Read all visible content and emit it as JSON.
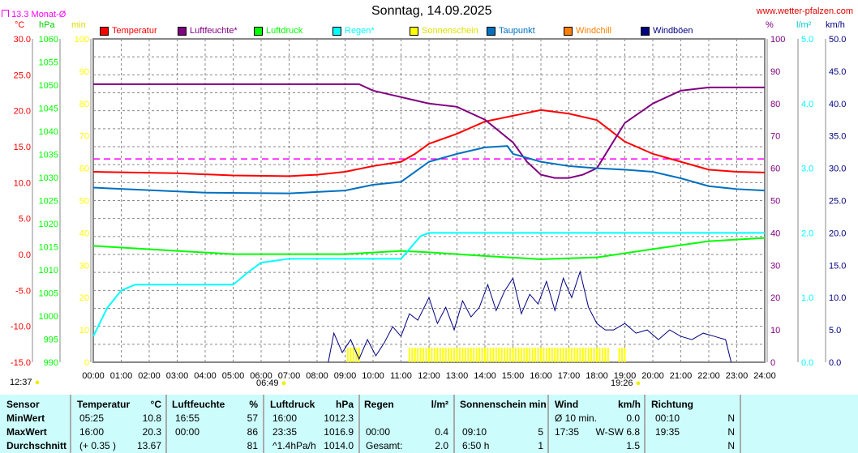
{
  "header": {
    "title": "Sonntag, 14.09.2025",
    "site": "www.wetter-pfalzen.com",
    "month_avg": "13.3 Monat-Ø"
  },
  "units": {
    "temp": "°C",
    "press": "hPa",
    "sun": "min",
    "hum": "%",
    "rain": "l/m²",
    "wind": "km/h"
  },
  "legend": [
    {
      "label": "Temperatur",
      "color": "#ff0000"
    },
    {
      "label": "Luftfeuchte*",
      "color": "#800080"
    },
    {
      "label": "Luftdruck",
      "color": "#00ff00"
    },
    {
      "label": "Regen*",
      "color": "#00ffff"
    },
    {
      "label": "Sonnenschein",
      "color": "#ffff00"
    },
    {
      "label": "Taupunkt",
      "color": "#0070c0"
    },
    {
      "label": "Windchill",
      "color": "#ff8000"
    },
    {
      "label": "Windböen",
      "color": "#000080"
    }
  ],
  "sun": {
    "sunrise": "06:49",
    "sunset": "19:26",
    "noon": "12:37"
  },
  "chart_data": {
    "type": "line",
    "title": "Sonntag, 14.09.2025",
    "xlim": [
      0,
      24
    ],
    "x_ticks": [
      "00:00",
      "01:00",
      "02:00",
      "03:00",
      "04:00",
      "05:00",
      "06:00",
      "07:00",
      "08:00",
      "09:00",
      "10:00",
      "11:00",
      "12:00",
      "13:00",
      "14:00",
      "15:00",
      "16:00",
      "17:00",
      "18:00",
      "19:00",
      "20:00",
      "21:00",
      "22:00",
      "23:00",
      "24:00"
    ],
    "axes": {
      "temp": {
        "range": [
          -15,
          30
        ],
        "ticks": [
          "30.0",
          "25.0",
          "20.0",
          "15.0",
          "10.0",
          "5.0",
          "0.0",
          "-5.0",
          "-10.0",
          "-15.0"
        ]
      },
      "press": {
        "range": [
          990,
          1060
        ],
        "ticks": [
          "1060",
          "1055",
          "1050",
          "1045",
          "1040",
          "1035",
          "1030",
          "1025",
          "1020",
          "1015",
          "1010",
          "1005",
          "1000",
          "995",
          "990"
        ]
      },
      "sun": {
        "range": [
          0,
          100
        ],
        "ticks": [
          "100",
          "90",
          "80",
          "70",
          "60",
          "50",
          "40",
          "30",
          "20",
          "10",
          "0"
        ]
      },
      "hum": {
        "range": [
          0,
          100
        ],
        "ticks": [
          "100",
          "90",
          "80",
          "70",
          "60",
          "50",
          "40",
          "30",
          "20",
          "10",
          "0"
        ]
      },
      "rain": {
        "range": [
          0,
          5
        ],
        "ticks": [
          "5.0",
          "4.0",
          "3.0",
          "2.0",
          "1.0",
          "0.0"
        ]
      },
      "wind": {
        "range": [
          0,
          50
        ],
        "ticks": [
          "50.0",
          "45.0",
          "40.0",
          "35.0",
          "30.0",
          "25.0",
          "20.0",
          "15.0",
          "10.0",
          "5.0",
          "0.0"
        ]
      }
    },
    "month_avg_temp": 13.3,
    "series": [
      {
        "name": "Temperatur",
        "axis": "temp",
        "color": "#ff0000",
        "x": [
          0,
          3,
          5,
          7,
          8,
          9,
          10,
          11,
          11.5,
          12,
          13,
          14,
          15,
          16,
          17,
          18,
          19,
          20,
          21,
          22,
          23,
          24
        ],
        "y": [
          11.5,
          11.3,
          11.0,
          10.9,
          11.1,
          11.5,
          12.3,
          12.9,
          14.0,
          15.4,
          16.8,
          18.5,
          19.3,
          20.1,
          19.6,
          18.7,
          15.7,
          14.0,
          12.9,
          11.8,
          11.5,
          11.4
        ]
      },
      {
        "name": "Luftfeuchte",
        "axis": "hum",
        "color": "#800080",
        "x": [
          0,
          9.5,
          10,
          11,
          12,
          13,
          14,
          15,
          15.5,
          16,
          16.5,
          17,
          17.5,
          18,
          18.5,
          19,
          20,
          21,
          22,
          24
        ],
        "y": [
          86,
          86,
          84,
          82,
          80,
          79,
          75,
          68,
          62,
          58,
          57,
          57,
          58,
          60,
          67,
          74,
          80,
          84,
          85,
          85
        ]
      },
      {
        "name": "Luftdruck",
        "axis": "press",
        "color": "#00ff00",
        "x": [
          0,
          3,
          5,
          9,
          11,
          12,
          14,
          16,
          18,
          20,
          22,
          24
        ],
        "y": [
          1015.2,
          1014.1,
          1013.4,
          1013.4,
          1014.1,
          1013.8,
          1013.0,
          1012.3,
          1012.7,
          1014.5,
          1016.2,
          1016.9
        ]
      },
      {
        "name": "Regen",
        "axis": "rain",
        "color": "#00ffff",
        "x": [
          0,
          0.5,
          1,
          1.5,
          5,
          5.5,
          6,
          7,
          11,
          11.3,
          11.7,
          12,
          24
        ],
        "y": [
          0.4,
          0.84,
          1.11,
          1.2,
          1.2,
          1.38,
          1.54,
          1.6,
          1.6,
          1.75,
          1.95,
          2.0,
          2.0
        ]
      },
      {
        "name": "Taupunkt",
        "axis": "temp",
        "color": "#0070c0",
        "x": [
          0,
          4,
          7,
          9,
          10,
          11,
          12,
          13,
          14,
          14.8,
          15,
          16,
          17,
          18,
          19,
          20,
          21,
          22,
          23,
          24
        ],
        "y": [
          9.3,
          8.6,
          8.5,
          8.9,
          9.7,
          10.1,
          12.9,
          14.0,
          14.9,
          15.1,
          14.0,
          12.9,
          12.3,
          12.0,
          11.8,
          11.5,
          10.6,
          9.5,
          9.1,
          8.9
        ]
      },
      {
        "name": "Windböen",
        "axis": "wind",
        "color": "#000080",
        "x": [
          8.4,
          8.6,
          8.9,
          9.2,
          9.5,
          9.8,
          10.1,
          10.4,
          10.7,
          11,
          11.3,
          11.6,
          12,
          12.3,
          12.6,
          12.9,
          13.2,
          13.5,
          13.8,
          14.1,
          14.4,
          14.7,
          15,
          15.3,
          15.6,
          15.9,
          16.2,
          16.5,
          16.8,
          17.1,
          17.4,
          17.7,
          18,
          18.3,
          18.6,
          19,
          19.4,
          19.8,
          20.2,
          20.6,
          21,
          21.4,
          21.8,
          22.2,
          22.6,
          22.8
        ],
        "y": [
          0,
          4.5,
          1.5,
          3.5,
          0.5,
          3.5,
          1,
          3,
          5.5,
          4,
          7.5,
          6.5,
          10,
          6,
          8.5,
          5,
          9.5,
          7,
          8.5,
          12,
          8,
          11,
          13,
          7.5,
          10.5,
          9,
          12.5,
          8,
          13,
          10,
          14,
          8.5,
          6,
          5,
          5,
          6,
          4.5,
          5,
          3.5,
          5,
          4,
          3.5,
          4.5,
          4,
          3.5,
          0
        ]
      }
    ],
    "sunshine_intervals": [
      [
        9.1,
        9.5
      ],
      [
        11.3,
        18.5
      ],
      [
        18.8,
        19.1
      ]
    ]
  },
  "table": {
    "headers": [
      "Sensor",
      "Temperatur",
      "°C",
      "Luftfeuchte",
      "%",
      "Luftdruck",
      "hPa",
      "Regen",
      "l/m²",
      "Sonnenschein min",
      "Wind",
      "km/h",
      "Richtung"
    ],
    "rows": [
      {
        "label": "MinWert",
        "t_time": "05:25",
        "t_val": "10.8",
        "h_time": "16:55",
        "h_val": "57",
        "p_time": "16:00",
        "p_val": "1012.3",
        "r_time": "",
        "r_val": "",
        "s_time": "",
        "s_val": "",
        "w_time": "Ø 10 min.",
        "w_val": "0.0",
        "d_time": "00:10",
        "d_val": "N"
      },
      {
        "label": "MaxWert",
        "t_time": "16:00",
        "t_val": "20.3",
        "h_time": "00:00",
        "h_val": "86",
        "p_time": "23:35",
        "p_val": "1016.9",
        "r_time": "00:00",
        "r_val": "0.4",
        "s_time": "09:10",
        "s_val": "5",
        "w_time": "17:35",
        "w_val": "W-SW 6.8",
        "d_time": "19:35",
        "d_val": "N"
      },
      {
        "label": "Durchschnitt",
        "t_time": "(+ 0.35 )",
        "t_val": "13.67",
        "h_time": "",
        "h_val": "81",
        "p_time": "^1.4hPa/h",
        "p_val": "1014.0",
        "r_time": "Gesamt:",
        "r_val": "2.0",
        "s_time": "6:50 h",
        "s_val": "1",
        "w_time": "",
        "w_val": "1.5",
        "d_time": "",
        "d_val": "N"
      }
    ]
  }
}
